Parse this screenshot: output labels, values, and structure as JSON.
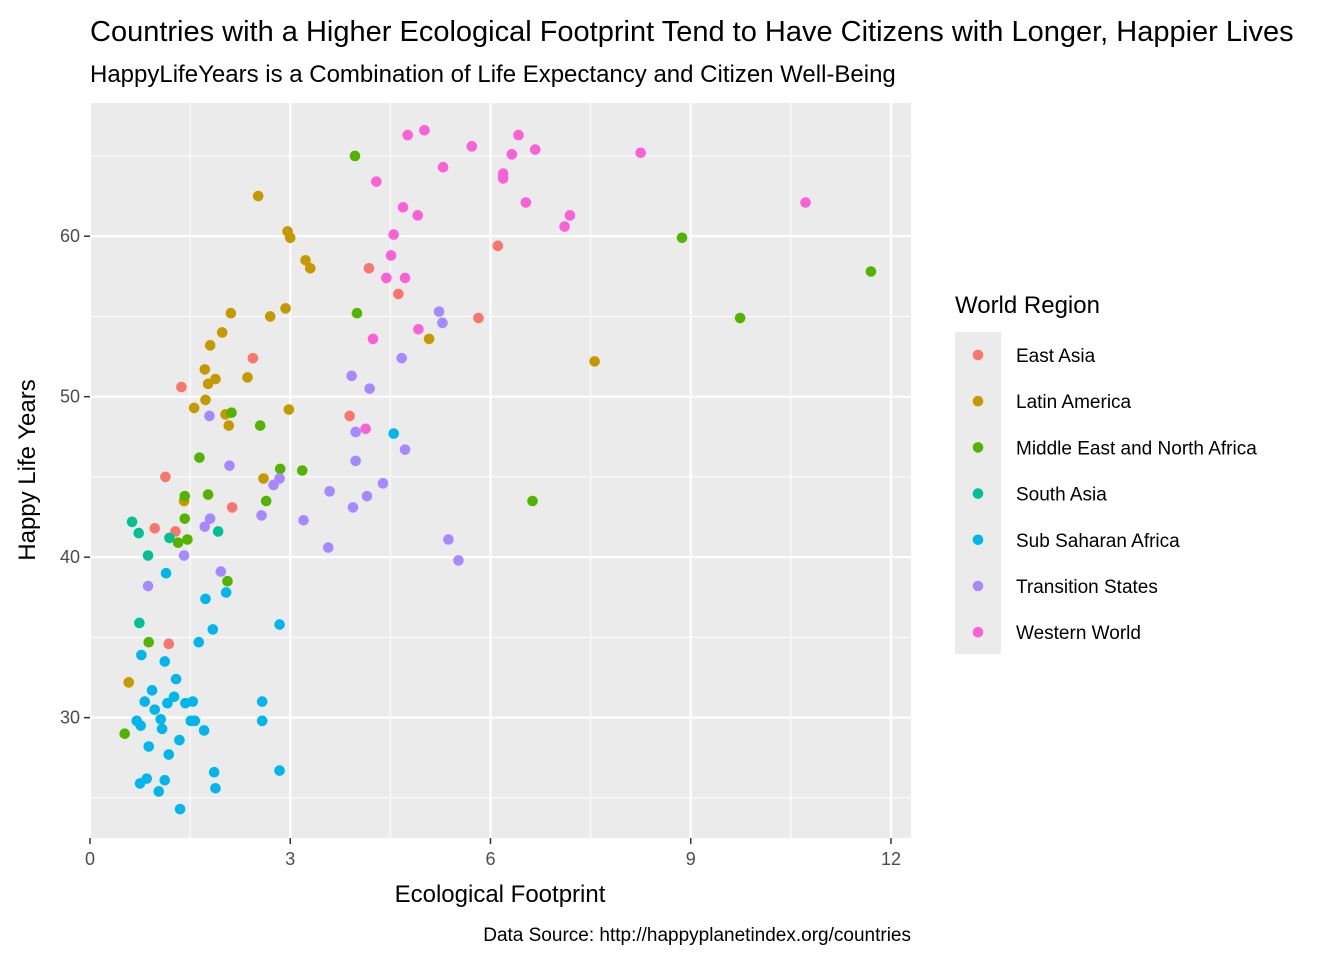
{
  "chart_data": {
    "type": "scatter",
    "title": "Countries with a Higher Ecological Footprint Tend to Have Citizens with Longer, Happier Lives",
    "subtitle": "HappyLifeYears is a Combination of Life Expectancy and Citizen Well-Being",
    "xlabel": "Ecological Footprint",
    "ylabel": "Happy Life Years",
    "caption": "Data Source: http://happyplanetindex.org/countries",
    "xlim": [
      0,
      12.3
    ],
    "ylim": [
      22.5,
      68.3
    ],
    "x_ticks": [
      0,
      3,
      6,
      9,
      12
    ],
    "y_ticks": [
      30,
      40,
      50,
      60
    ],
    "grid": true,
    "legend": {
      "title": "World Region",
      "position": "right"
    },
    "series": [
      {
        "name": "East Asia",
        "color": "#F8766D",
        "points": [
          [
            1.13,
            45.0
          ],
          [
            0.97,
            41.8
          ],
          [
            1.28,
            41.6
          ],
          [
            1.37,
            50.6
          ],
          [
            1.18,
            34.6
          ],
          [
            2.13,
            43.1
          ],
          [
            2.44,
            52.4
          ],
          [
            3.89,
            48.8
          ],
          [
            4.18,
            58.0
          ],
          [
            4.62,
            56.4
          ],
          [
            5.82,
            54.9
          ],
          [
            6.11,
            59.4
          ]
        ]
      },
      {
        "name": "Latin America",
        "color": "#C49A00",
        "points": [
          [
            0.58,
            32.2
          ],
          [
            1.41,
            43.5
          ],
          [
            1.56,
            49.3
          ],
          [
            1.72,
            51.7
          ],
          [
            1.73,
            49.8
          ],
          [
            1.77,
            50.8
          ],
          [
            1.8,
            53.2
          ],
          [
            1.88,
            51.1
          ],
          [
            1.98,
            54.0
          ],
          [
            2.03,
            48.9
          ],
          [
            2.08,
            48.2
          ],
          [
            2.11,
            55.2
          ],
          [
            2.36,
            51.2
          ],
          [
            2.52,
            62.5
          ],
          [
            2.6,
            44.9
          ],
          [
            2.7,
            55.0
          ],
          [
            2.93,
            55.5
          ],
          [
            2.96,
            60.3
          ],
          [
            2.98,
            49.2
          ],
          [
            3.0,
            59.9
          ],
          [
            3.23,
            58.5
          ],
          [
            3.3,
            58.0
          ],
          [
            5.08,
            53.6
          ],
          [
            7.56,
            52.2
          ]
        ]
      },
      {
        "name": "Middle East and North Africa",
        "color": "#53B400",
        "points": [
          [
            0.52,
            29.0
          ],
          [
            0.88,
            34.7
          ],
          [
            1.32,
            40.9
          ],
          [
            1.42,
            43.8
          ],
          [
            1.42,
            42.4
          ],
          [
            1.46,
            41.1
          ],
          [
            1.64,
            46.2
          ],
          [
            1.77,
            43.9
          ],
          [
            2.06,
            38.5
          ],
          [
            2.12,
            49.0
          ],
          [
            2.55,
            48.2
          ],
          [
            2.64,
            43.5
          ],
          [
            2.85,
            45.5
          ],
          [
            3.18,
            45.4
          ],
          [
            3.97,
            65.0
          ],
          [
            4.0,
            55.2
          ],
          [
            6.63,
            43.5
          ],
          [
            8.87,
            59.9
          ],
          [
            9.74,
            54.9
          ],
          [
            11.7,
            57.8
          ]
        ]
      },
      {
        "name": "South Asia",
        "color": "#00C094",
        "points": [
          [
            0.63,
            42.2
          ],
          [
            0.73,
            41.5
          ],
          [
            0.74,
            35.9
          ],
          [
            0.87,
            40.1
          ],
          [
            1.19,
            41.2
          ],
          [
            1.92,
            41.6
          ]
        ]
      },
      {
        "name": "Sub Saharan Africa",
        "color": "#00B6EB",
        "points": [
          [
            0.7,
            29.8
          ],
          [
            0.75,
            25.9
          ],
          [
            0.76,
            29.5
          ],
          [
            0.77,
            33.9
          ],
          [
            0.82,
            31.0
          ],
          [
            0.85,
            26.2
          ],
          [
            0.88,
            28.2
          ],
          [
            0.93,
            31.7
          ],
          [
            0.97,
            30.5
          ],
          [
            1.03,
            25.4
          ],
          [
            1.06,
            29.9
          ],
          [
            1.08,
            29.3
          ],
          [
            1.12,
            33.5
          ],
          [
            1.12,
            26.1
          ],
          [
            1.14,
            39.0
          ],
          [
            1.16,
            30.9
          ],
          [
            1.18,
            27.7
          ],
          [
            1.26,
            31.3
          ],
          [
            1.29,
            32.4
          ],
          [
            1.34,
            28.6
          ],
          [
            1.35,
            24.3
          ],
          [
            1.43,
            30.9
          ],
          [
            1.51,
            29.8
          ],
          [
            1.54,
            31.0
          ],
          [
            1.57,
            29.8
          ],
          [
            1.63,
            34.7
          ],
          [
            1.71,
            29.2
          ],
          [
            1.73,
            37.4
          ],
          [
            1.84,
            35.5
          ],
          [
            1.86,
            26.6
          ],
          [
            1.88,
            25.6
          ],
          [
            2.04,
            37.8
          ],
          [
            2.58,
            31.0
          ],
          [
            2.58,
            29.8
          ],
          [
            2.84,
            35.8
          ],
          [
            2.84,
            26.7
          ],
          [
            4.55,
            47.7
          ]
        ]
      },
      {
        "name": "Transition States",
        "color": "#A58AFF",
        "points": [
          [
            0.87,
            38.2
          ],
          [
            1.41,
            40.1
          ],
          [
            1.72,
            41.9
          ],
          [
            1.79,
            48.8
          ],
          [
            1.8,
            42.4
          ],
          [
            1.96,
            39.1
          ],
          [
            2.09,
            45.7
          ],
          [
            2.57,
            42.6
          ],
          [
            2.75,
            44.5
          ],
          [
            2.84,
            44.9
          ],
          [
            3.2,
            42.3
          ],
          [
            3.57,
            40.6
          ],
          [
            3.59,
            44.1
          ],
          [
            3.92,
            51.3
          ],
          [
            3.94,
            43.1
          ],
          [
            3.98,
            47.8
          ],
          [
            3.98,
            46.0
          ],
          [
            4.15,
            43.8
          ],
          [
            4.19,
            50.5
          ],
          [
            4.39,
            44.6
          ],
          [
            4.67,
            52.4
          ],
          [
            4.72,
            46.7
          ],
          [
            5.23,
            55.3
          ],
          [
            5.28,
            54.6
          ],
          [
            5.37,
            41.1
          ],
          [
            5.52,
            39.8
          ]
        ]
      },
      {
        "name": "Western World",
        "color": "#FB61D7",
        "points": [
          [
            4.13,
            48.0
          ],
          [
            4.24,
            53.6
          ],
          [
            4.29,
            63.4
          ],
          [
            4.44,
            57.4
          ],
          [
            4.51,
            58.8
          ],
          [
            4.55,
            60.1
          ],
          [
            4.69,
            61.8
          ],
          [
            4.72,
            57.4
          ],
          [
            4.76,
            66.3
          ],
          [
            4.91,
            61.3
          ],
          [
            4.92,
            54.2
          ],
          [
            5.01,
            66.6
          ],
          [
            5.29,
            64.3
          ],
          [
            5.72,
            65.6
          ],
          [
            6.19,
            63.9
          ],
          [
            6.19,
            63.6
          ],
          [
            6.32,
            65.1
          ],
          [
            6.42,
            66.3
          ],
          [
            6.53,
            62.1
          ],
          [
            6.67,
            65.4
          ],
          [
            7.11,
            60.6
          ],
          [
            7.19,
            61.3
          ],
          [
            8.25,
            65.2
          ],
          [
            10.72,
            62.1
          ]
        ]
      }
    ]
  }
}
